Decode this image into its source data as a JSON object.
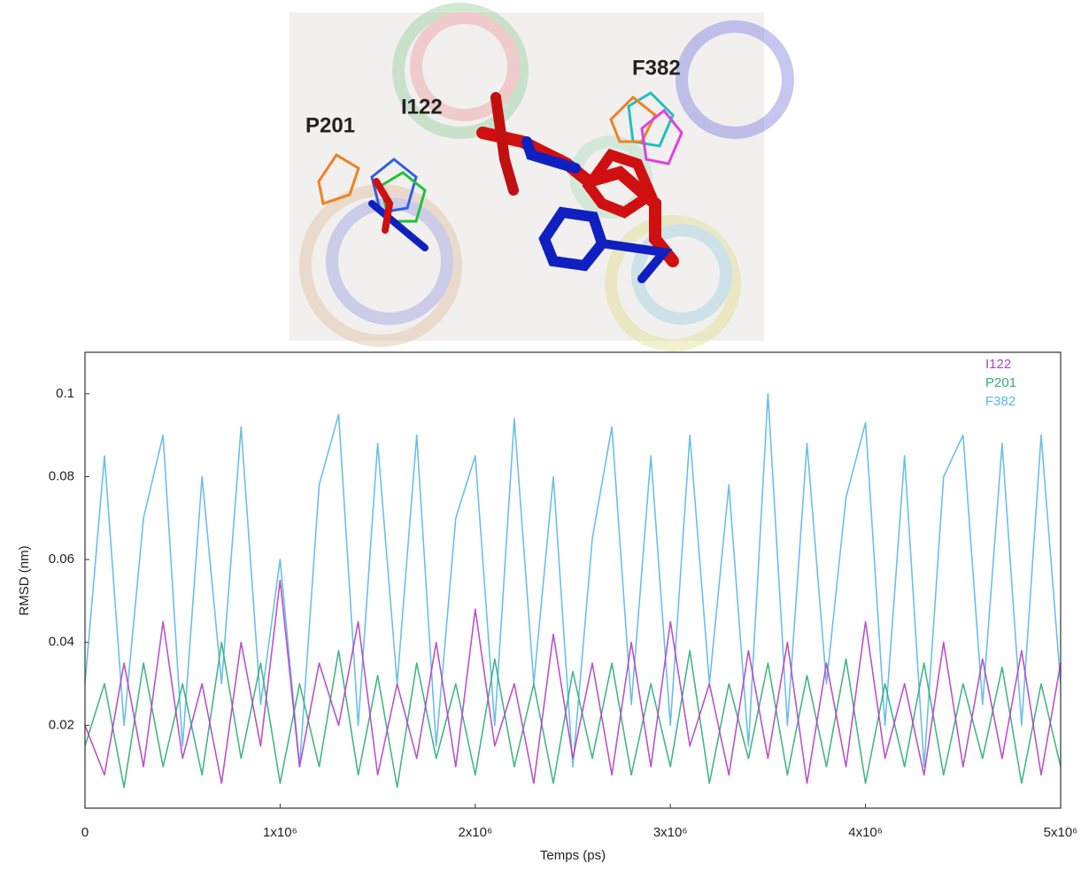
{
  "figure_labels": [
    "P201",
    "I122",
    "F382"
  ],
  "chart_data": {
    "type": "line",
    "x_label": "Temps (ps)",
    "y_label": "RMSD (nm)",
    "xlim": [
      0,
      5000000
    ],
    "ylim": [
      0,
      0.11
    ],
    "xticks": [
      0,
      {
        "value": 1000000,
        "label": "1x10⁶"
      },
      {
        "value": 2000000,
        "label": "2x10⁶"
      },
      {
        "value": 3000000,
        "label": "3x10⁶"
      },
      {
        "value": 4000000,
        "label": "4x10⁶"
      },
      {
        "value": 5000000,
        "label": "5x10⁶"
      }
    ],
    "yticks": [
      0.02,
      0.04,
      0.06,
      0.08,
      0.1
    ],
    "legend": "upper right",
    "x": [
      0,
      100000,
      200000,
      300000,
      400000,
      500000,
      600000,
      700000,
      800000,
      900000,
      1000000,
      1100000,
      1200000,
      1300000,
      1400000,
      1500000,
      1600000,
      1700000,
      1800000,
      1900000,
      2000000,
      2100000,
      2200000,
      2300000,
      2400000,
      2500000,
      2600000,
      2700000,
      2800000,
      2900000,
      3000000,
      3100000,
      3200000,
      3300000,
      3400000,
      3500000,
      3600000,
      3700000,
      3800000,
      3900000,
      4000000,
      4100000,
      4200000,
      4300000,
      4400000,
      4500000,
      4600000,
      4700000,
      4800000,
      4900000,
      5000000
    ],
    "series": [
      {
        "name": "I122",
        "color": "#b23fc8",
        "values": [
          0.02,
          0.008,
          0.035,
          0.01,
          0.045,
          0.012,
          0.03,
          0.006,
          0.04,
          0.015,
          0.055,
          0.01,
          0.035,
          0.02,
          0.045,
          0.008,
          0.03,
          0.012,
          0.04,
          0.01,
          0.048,
          0.015,
          0.03,
          0.006,
          0.042,
          0.012,
          0.035,
          0.008,
          0.04,
          0.01,
          0.045,
          0.015,
          0.03,
          0.008,
          0.038,
          0.012,
          0.04,
          0.006,
          0.035,
          0.01,
          0.045,
          0.012,
          0.03,
          0.008,
          0.04,
          0.01,
          0.036,
          0.012,
          0.038,
          0.008,
          0.035
        ]
      },
      {
        "name": "P201",
        "color": "#2fae7a",
        "values": [
          0.015,
          0.03,
          0.005,
          0.035,
          0.01,
          0.03,
          0.008,
          0.04,
          0.012,
          0.035,
          0.006,
          0.03,
          0.01,
          0.038,
          0.008,
          0.032,
          0.005,
          0.035,
          0.012,
          0.03,
          0.008,
          0.036,
          0.01,
          0.03,
          0.006,
          0.033,
          0.012,
          0.035,
          0.008,
          0.03,
          0.01,
          0.038,
          0.006,
          0.03,
          0.012,
          0.035,
          0.008,
          0.032,
          0.01,
          0.036,
          0.006,
          0.03,
          0.01,
          0.035,
          0.008,
          0.03,
          0.012,
          0.034,
          0.006,
          0.03,
          0.01
        ]
      },
      {
        "name": "F382",
        "color": "#5bb8e6",
        "values": [
          0.03,
          0.085,
          0.02,
          0.07,
          0.09,
          0.015,
          0.08,
          0.03,
          0.092,
          0.025,
          0.06,
          0.01,
          0.078,
          0.095,
          0.02,
          0.088,
          0.03,
          0.09,
          0.015,
          0.07,
          0.085,
          0.02,
          0.094,
          0.03,
          0.08,
          0.01,
          0.065,
          0.092,
          0.025,
          0.085,
          0.02,
          0.09,
          0.03,
          0.078,
          0.015,
          0.1,
          0.02,
          0.088,
          0.03,
          0.075,
          0.093,
          0.02,
          0.085,
          0.01,
          0.08,
          0.09,
          0.025,
          0.088,
          0.02,
          0.09,
          0.03
        ]
      }
    ]
  }
}
